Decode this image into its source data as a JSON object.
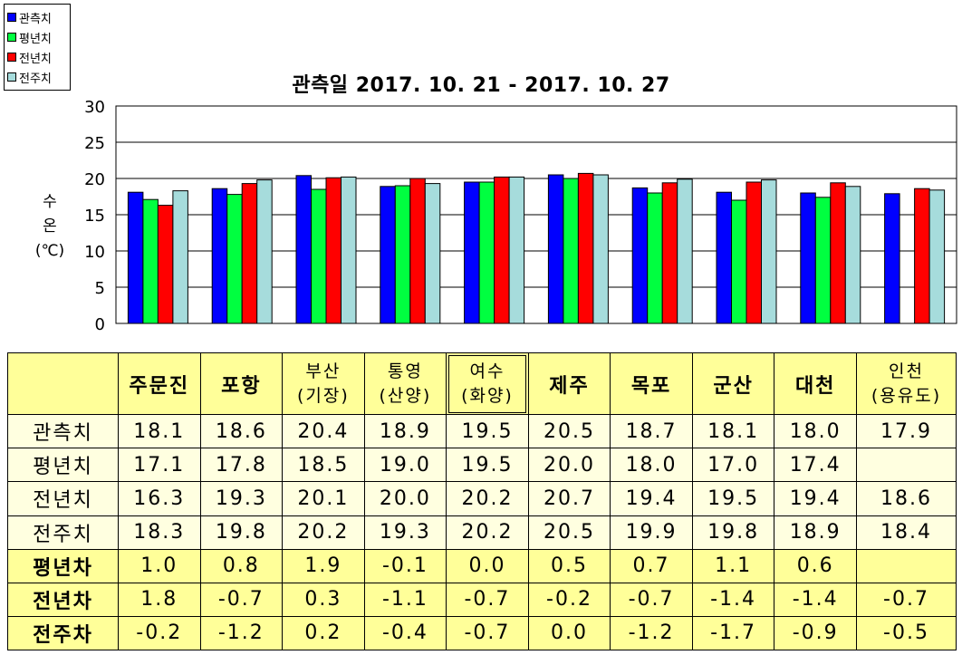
{
  "chart_data": {
    "type": "bar",
    "title": "관측일 2017. 10. 21 - 2017. 10. 27",
    "ylabel": [
      "수",
      "온",
      "(℃)"
    ],
    "ylim": [
      0,
      30
    ],
    "yticks": [
      "0",
      "5",
      "10",
      "15",
      "20",
      "25",
      "30"
    ],
    "grid": true,
    "legend_position": "top-left",
    "categories": [
      "주문진",
      "포항",
      "부산 (기장)",
      "통영 (산양)",
      "여수 (화양)",
      "제주",
      "목포",
      "군산",
      "대천",
      "인천 (용유도)"
    ],
    "series": [
      {
        "name": "관측치",
        "color": "#0000ff",
        "values": [
          18.1,
          18.6,
          20.4,
          18.9,
          19.5,
          20.5,
          18.7,
          18.1,
          18.0,
          17.9
        ]
      },
      {
        "name": "평년치",
        "color": "#00ff40",
        "values": [
          17.1,
          17.8,
          18.5,
          19.0,
          19.5,
          20.0,
          18.0,
          17.0,
          17.4,
          null
        ]
      },
      {
        "name": "전년치",
        "color": "#ff0000",
        "values": [
          16.3,
          19.3,
          20.1,
          20.0,
          20.2,
          20.7,
          19.4,
          19.5,
          19.4,
          18.6
        ]
      },
      {
        "name": "전주치",
        "color": "#a6dcdc",
        "values": [
          18.3,
          19.8,
          20.2,
          19.3,
          20.2,
          20.5,
          19.9,
          19.8,
          18.9,
          18.4
        ]
      }
    ]
  },
  "table": {
    "headers": [
      {
        "line1": "주문진",
        "line2": ""
      },
      {
        "line1": "포항",
        "line2": ""
      },
      {
        "line1": "부산",
        "line2": "(기장)"
      },
      {
        "line1": "통영",
        "line2": "(산양)"
      },
      {
        "line1": "여수",
        "line2": "(화양)"
      },
      {
        "line1": "제주",
        "line2": ""
      },
      {
        "line1": "목포",
        "line2": ""
      },
      {
        "line1": "군산",
        "line2": ""
      },
      {
        "line1": "대천",
        "line2": ""
      },
      {
        "line1": "인천",
        "line2": "(용유도)"
      }
    ],
    "rows": [
      {
        "label": "관측치",
        "kind": "val",
        "cells": [
          "18.1",
          "18.6",
          "20.4",
          "18.9",
          "19.5",
          "20.5",
          "18.7",
          "18.1",
          "18.0",
          "17.9"
        ]
      },
      {
        "label": "평년치",
        "kind": "val",
        "cells": [
          "17.1",
          "17.8",
          "18.5",
          "19.0",
          "19.5",
          "20.0",
          "18.0",
          "17.0",
          "17.4",
          ""
        ]
      },
      {
        "label": "전년치",
        "kind": "val",
        "cells": [
          "16.3",
          "19.3",
          "20.1",
          "20.0",
          "20.2",
          "20.7",
          "19.4",
          "19.5",
          "19.4",
          "18.6"
        ]
      },
      {
        "label": "전주치",
        "kind": "val",
        "cells": [
          "18.3",
          "19.8",
          "20.2",
          "19.3",
          "20.2",
          "20.5",
          "19.9",
          "19.8",
          "18.9",
          "18.4"
        ]
      },
      {
        "label": "평년차",
        "kind": "diff",
        "cells": [
          "1.0",
          "0.8",
          "1.9",
          "-0.1",
          "0.0",
          "0.5",
          "0.7",
          "1.1",
          "0.6",
          ""
        ]
      },
      {
        "label": "전년차",
        "kind": "diff",
        "cells": [
          "1.8",
          "-0.7",
          "0.3",
          "-1.1",
          "-0.7",
          "-0.2",
          "-0.7",
          "-1.4",
          "-1.4",
          "-0.7"
        ]
      },
      {
        "label": "전주차",
        "kind": "diff",
        "cells": [
          "-0.2",
          "-1.2",
          "0.2",
          "-0.4",
          "-0.7",
          "0.0",
          "-1.2",
          "-1.7",
          "-0.9",
          "-0.5"
        ]
      }
    ]
  }
}
